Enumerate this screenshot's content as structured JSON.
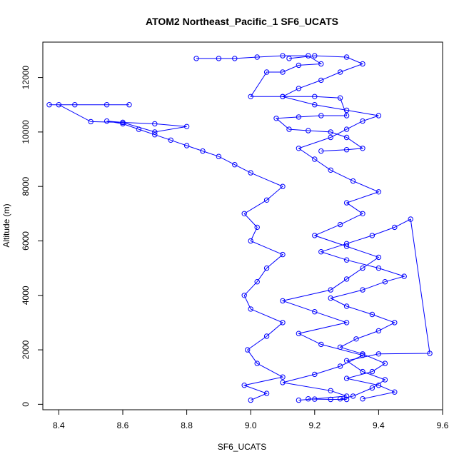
{
  "chart_data": {
    "type": "scatter",
    "title": "ATOM2 Northeast_Pacific_1 SF6_UCATS",
    "xlabel": "SF6_UCATS",
    "ylabel": "Altitude (m)",
    "xlim": [
      8.35,
      9.6
    ],
    "ylim": [
      -200,
      13300
    ],
    "xticks": [
      "8.4",
      "8.6",
      "8.8",
      "9.0",
      "9.2",
      "9.4",
      "9.6"
    ],
    "yticks": [
      "0",
      "2000",
      "4000",
      "6000",
      "8000",
      "10000",
      "12000"
    ],
    "grid": false,
    "legend": "none",
    "series_color": "#0000ff",
    "marker": "open-circle",
    "connected": true,
    "series": [
      {
        "x": [
          9.15,
          9.3,
          9.25,
          9.1,
          9.2,
          9.28,
          9.35,
          9.22,
          9.15,
          9.3,
          9.2,
          9.1,
          9.25,
          9.3,
          9.35,
          9.4,
          9.3,
          9.2,
          9.28,
          9.35,
          9.3,
          9.4,
          9.32,
          9.25,
          9.2,
          9.15,
          9.25,
          9.3,
          9.35,
          9.4,
          9.3,
          9.2,
          9.1,
          9.15,
          9.22,
          9.28,
          9.35,
          9.3,
          9.2,
          9.12
        ],
        "y": [
          150,
          300,
          500,
          800,
          1100,
          1400,
          1800,
          2200,
          2600,
          3000,
          3400,
          3800,
          4200,
          4600,
          5000,
          5400,
          5800,
          6200,
          6600,
          7000,
          7400,
          7800,
          8200,
          8600,
          9000,
          9400,
          9800,
          10100,
          10400,
          10600,
          10800,
          11000,
          11300,
          11600,
          11900,
          12200,
          12500,
          12750,
          12800,
          12700
        ]
      },
      {
        "x": [
          9.0,
          9.05,
          8.98,
          9.1,
          9.02,
          8.99,
          9.05,
          9.1,
          9.0,
          8.98,
          9.02,
          9.05,
          9.1,
          9.0,
          9.02,
          8.98,
          9.05,
          9.1,
          9.0,
          8.95,
          8.9,
          8.85,
          8.8,
          8.75,
          8.7,
          8.65,
          8.6,
          8.55,
          8.6,
          8.7,
          8.8,
          8.7,
          8.6,
          8.5,
          8.4,
          8.37,
          8.45,
          8.55,
          8.62
        ],
        "y": [
          150,
          400,
          700,
          1000,
          1500,
          2000,
          2500,
          3000,
          3500,
          4000,
          4500,
          5000,
          5500,
          6000,
          6500,
          7000,
          7500,
          8000,
          8500,
          8800,
          9100,
          9300,
          9500,
          9700,
          9900,
          10100,
          10300,
          10400,
          10350,
          10300,
          10200,
          10000,
          10350,
          10380,
          11000,
          11000,
          11000,
          11000,
          11000
        ]
      },
      {
        "x": [
          9.35,
          9.45,
          9.4,
          9.3,
          9.38,
          9.42,
          9.35,
          9.28,
          9.33,
          9.4,
          9.45,
          9.38,
          9.3,
          9.25,
          9.35,
          9.42,
          9.48,
          9.4,
          9.3,
          9.22,
          9.3,
          9.38,
          9.45,
          9.5,
          9.56,
          9.4,
          9.3,
          9.35,
          9.42,
          9.38,
          9.32,
          9.28,
          9.3,
          9.25,
          9.2,
          9.18
        ],
        "y": [
          200,
          450,
          700,
          950,
          1200,
          1500,
          1850,
          2100,
          2400,
          2700,
          3000,
          3300,
          3600,
          3900,
          4200,
          4500,
          4700,
          5000,
          5300,
          5600,
          5900,
          6200,
          6500,
          6800,
          1870,
          1850,
          1600,
          1200,
          900,
          600,
          300,
          200,
          180,
          180,
          190,
          200
        ]
      },
      {
        "x": [
          8.83,
          8.9,
          8.95,
          9.02,
          9.1,
          9.18,
          9.22,
          9.15,
          9.1,
          9.05,
          9.0,
          9.1,
          9.2,
          9.28,
          9.3,
          9.22,
          9.15,
          9.08,
          9.12,
          9.18,
          9.25,
          9.3,
          9.35,
          9.3,
          9.22
        ],
        "y": [
          12700,
          12700,
          12700,
          12750,
          12800,
          12800,
          12500,
          12450,
          12200,
          12200,
          11300,
          11300,
          11300,
          11250,
          10600,
          10600,
          10550,
          10500,
          10100,
          10050,
          10000,
          9800,
          9400,
          9350,
          9300
        ]
      }
    ]
  }
}
